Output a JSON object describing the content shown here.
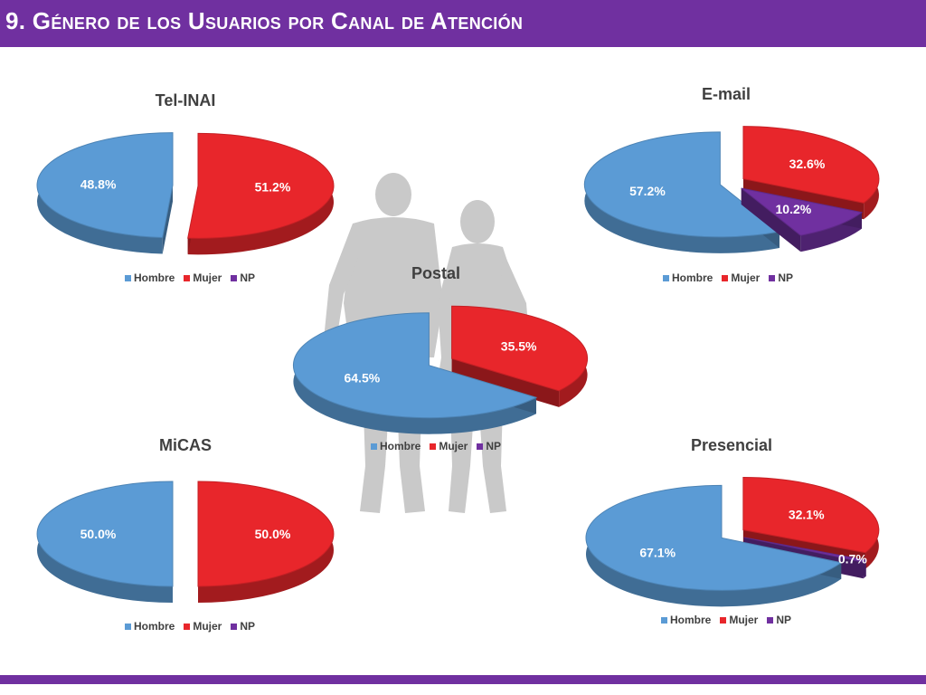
{
  "page": {
    "title": "9. Género de los Usuarios por Canal de Atención"
  },
  "colors": {
    "header": "#7030a0",
    "hombre": "#5b9bd5",
    "mujer": "#e8262b",
    "np": "#7030a0"
  },
  "legend_labels": [
    "Hombre",
    "Mujer",
    "NP"
  ],
  "chart_data": [
    {
      "type": "pie",
      "title": "Tel-INAI",
      "categories": [
        "Hombre",
        "Mujer",
        "NP"
      ],
      "values": [
        48.8,
        51.2,
        0
      ],
      "labels": [
        "48.8%",
        "51.2%",
        ""
      ],
      "legend": "bottom"
    },
    {
      "type": "pie",
      "title": "E-mail",
      "categories": [
        "Hombre",
        "Mujer",
        "NP"
      ],
      "values": [
        57.2,
        32.6,
        10.2
      ],
      "labels": [
        "57.2%",
        "32.6%",
        "10.2%"
      ],
      "legend": "bottom"
    },
    {
      "type": "pie",
      "title": "Postal",
      "categories": [
        "Hombre",
        "Mujer",
        "NP"
      ],
      "values": [
        64.5,
        35.5,
        0
      ],
      "labels": [
        "64.5%",
        "35.5%",
        ""
      ],
      "legend": "bottom"
    },
    {
      "type": "pie",
      "title": "MiCAS",
      "categories": [
        "Hombre",
        "Mujer",
        "NP"
      ],
      "values": [
        50.0,
        50.0,
        0
      ],
      "labels": [
        "50.0%",
        "50.0%",
        ""
      ],
      "legend": "bottom"
    },
    {
      "type": "pie",
      "title": "Presencial",
      "categories": [
        "Hombre",
        "Mujer",
        "NP"
      ],
      "values": [
        67.1,
        32.1,
        0.7
      ],
      "labels": [
        "67.1%",
        "32.1%",
        "0.7%"
      ],
      "legend": "bottom"
    }
  ]
}
